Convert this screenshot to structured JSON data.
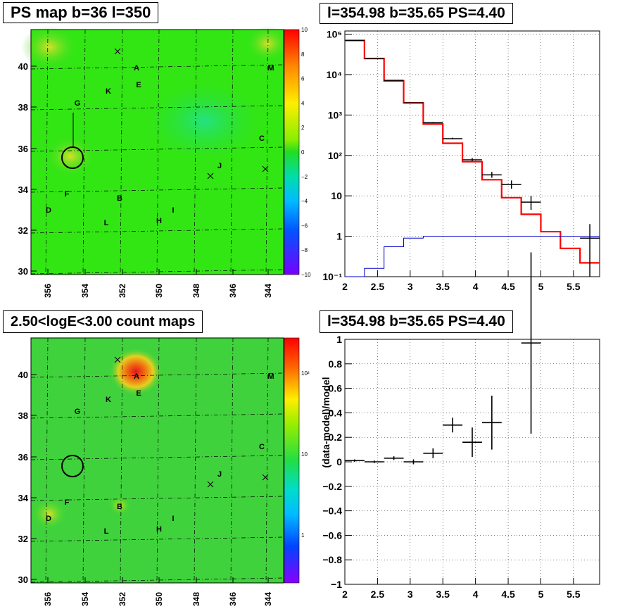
{
  "panels": {
    "top_left_title": "PS map b=36 l=350",
    "top_right_title": "l=354.98 b=35.65 PS=4.40",
    "bottom_left_title": "2.50<logE<3.00 count maps",
    "bottom_right_title": "l=354.98 b=35.65 PS=4.40"
  },
  "maps": {
    "x_ticks": [
      "356",
      "354",
      "352",
      "350",
      "348",
      "346",
      "344"
    ],
    "y_ticks": [
      "30",
      "32",
      "34",
      "36",
      "38",
      "40"
    ],
    "source_labels": [
      "A",
      "B",
      "C",
      "D",
      "E",
      "F",
      "G",
      "H",
      "I",
      "J",
      "K",
      "L",
      "M"
    ],
    "ps_colorbar_ticks": [
      "10",
      "8",
      "6",
      "4",
      "2",
      "0",
      "−2",
      "−4",
      "−6",
      "−8",
      "−10"
    ],
    "count_colorbar_ticks": [
      "10²",
      "10",
      "1"
    ],
    "colors": {
      "ps_background": "#32e614",
      "count_background": "#3fd23c",
      "hotspot": "#e4141e"
    }
  },
  "chart_data": [
    {
      "type": "line",
      "subtype": "histogram-step",
      "title": "l=354.98 b=35.65 PS=4.40",
      "yscale": "log",
      "xlim": [
        2,
        5.9
      ],
      "ylim": [
        0.1,
        120000
      ],
      "x_ticks": [
        "2",
        "2.5",
        "3",
        "3.5",
        "4",
        "4.5",
        "5",
        "5.5"
      ],
      "y_ticks": [
        "10⁻¹",
        "1",
        "10",
        "10²",
        "10³",
        "10⁴",
        "10⁵"
      ],
      "bin_edges": [
        2.0,
        2.3,
        2.6,
        2.9,
        3.2,
        3.5,
        3.8,
        4.1,
        4.4,
        4.7,
        5.0,
        5.3,
        5.6,
        5.9
      ],
      "series": [
        {
          "color": "#ff0000",
          "values": [
            70000,
            25000,
            7000,
            2000,
            600,
            200,
            70,
            25,
            9,
            3.5,
            1.3,
            0.5,
            0.22
          ]
        },
        {
          "color": "#0000cc",
          "values": [
            0.1,
            0.16,
            0.55,
            0.9,
            1.0,
            1.0,
            1.0,
            1.0,
            1.0,
            1.0,
            1.0,
            1.0,
            1.0
          ]
        }
      ],
      "data_points": [
        {
          "x": 2.15,
          "y": 70000,
          "xerr": 0.15,
          "ylo": 70000,
          "yhi": 70000
        },
        {
          "x": 2.45,
          "y": 25000,
          "xerr": 0.15,
          "ylo": 25000,
          "yhi": 25000
        },
        {
          "x": 2.75,
          "y": 7200,
          "xerr": 0.15,
          "ylo": 7200,
          "yhi": 7200
        },
        {
          "x": 3.05,
          "y": 2000,
          "xerr": 0.15,
          "ylo": 2000,
          "yhi": 2000
        },
        {
          "x": 3.35,
          "y": 650,
          "xerr": 0.15,
          "ylo": 630,
          "yhi": 670
        },
        {
          "x": 3.65,
          "y": 260,
          "xerr": 0.15,
          "ylo": 250,
          "yhi": 275
        },
        {
          "x": 3.95,
          "y": 78,
          "xerr": 0.15,
          "ylo": 72,
          "yhi": 86
        },
        {
          "x": 4.25,
          "y": 33,
          "xerr": 0.15,
          "ylo": 28,
          "yhi": 39
        },
        {
          "x": 4.55,
          "y": 19,
          "xerr": 0.15,
          "ylo": 15,
          "yhi": 24
        },
        {
          "x": 4.85,
          "y": 7,
          "xerr": 0.15,
          "ylo": 4.5,
          "yhi": 10
        },
        {
          "x": 5.75,
          "y": 0.9,
          "xerr": 0.15,
          "ylo": 0.1,
          "yhi": 2.0
        }
      ]
    },
    {
      "type": "scatter",
      "subtype": "errorbar",
      "title": "l=354.98 b=35.65 PS=4.40",
      "ylabel": "(data-model)/model",
      "xlim": [
        2,
        5.9
      ],
      "ylim": [
        -1,
        1
      ],
      "x_ticks": [
        "2",
        "2.5",
        "3",
        "3.5",
        "4",
        "4.5",
        "5",
        "5.5"
      ],
      "y_ticks": [
        "−1",
        "−0.8",
        "−0.6",
        "−0.4",
        "−0.2",
        "0",
        "0.2",
        "0.4",
        "0.6",
        "0.8",
        "1"
      ],
      "points": [
        {
          "x": 2.15,
          "y": 0.01,
          "xerr": 0.15,
          "yerr": 0.01
        },
        {
          "x": 2.45,
          "y": 0.0,
          "xerr": 0.15,
          "yerr": 0.01
        },
        {
          "x": 2.75,
          "y": 0.03,
          "xerr": 0.15,
          "yerr": 0.015
        },
        {
          "x": 3.05,
          "y": 0.0,
          "xerr": 0.15,
          "yerr": 0.02
        },
        {
          "x": 3.35,
          "y": 0.07,
          "xerr": 0.15,
          "yerr": 0.04
        },
        {
          "x": 3.65,
          "y": 0.3,
          "xerr": 0.15,
          "yerr": 0.06
        },
        {
          "x": 3.95,
          "y": 0.16,
          "xerr": 0.15,
          "yerr": 0.12
        },
        {
          "x": 4.25,
          "y": 0.32,
          "xerr": 0.15,
          "yerr": 0.22
        },
        {
          "x": 4.85,
          "y": 0.97,
          "xerr": 0.15,
          "yerr": 0.74
        }
      ]
    }
  ]
}
